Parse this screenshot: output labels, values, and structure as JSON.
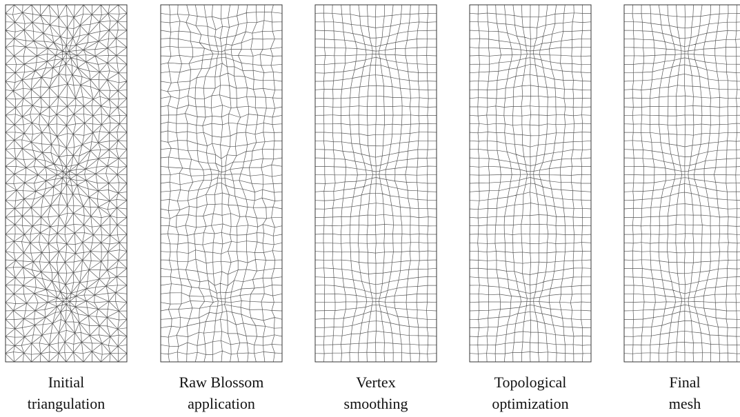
{
  "figure": {
    "panels": [
      {
        "caption": [
          "Initial",
          "triangulation"
        ]
      },
      {
        "caption": [
          "Raw Blossom",
          "application"
        ]
      },
      {
        "caption": [
          "Vertex",
          "smoothing"
        ]
      },
      {
        "caption": [
          "Topological",
          "optimization"
        ]
      },
      {
        "caption": [
          "Final",
          "mesh"
        ]
      }
    ]
  }
}
